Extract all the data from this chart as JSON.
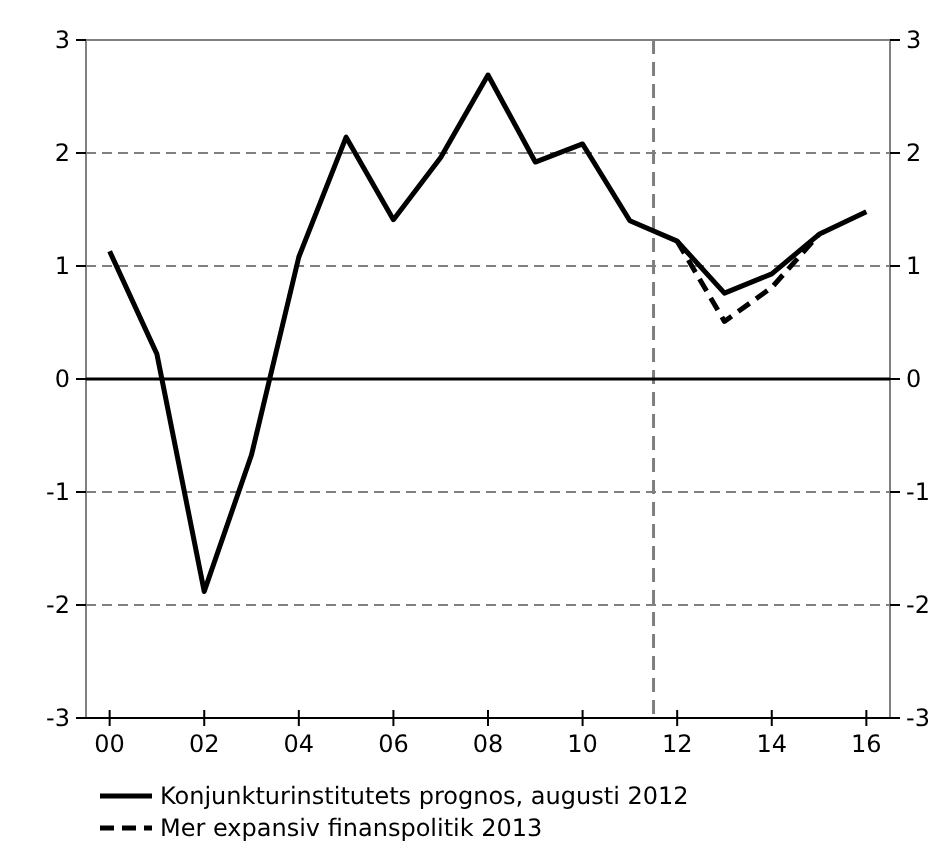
{
  "chart_data": {
    "type": "line",
    "x": [
      2000,
      2001,
      2002,
      2003,
      2004,
      2005,
      2006,
      2007,
      2008,
      2009,
      2010,
      2011,
      2012,
      2013,
      2014,
      2015,
      2016
    ],
    "xlim": [
      1999.5,
      2016.5
    ],
    "xticks": [
      {
        "value": 2000,
        "label": "00"
      },
      {
        "value": 2002,
        "label": "02"
      },
      {
        "value": 2004,
        "label": "04"
      },
      {
        "value": 2006,
        "label": "06"
      },
      {
        "value": 2008,
        "label": "08"
      },
      {
        "value": 2010,
        "label": "10"
      },
      {
        "value": 2012,
        "label": "12"
      },
      {
        "value": 2014,
        "label": "14"
      },
      {
        "value": 2016,
        "label": "16"
      }
    ],
    "ylim": [
      -3,
      3
    ],
    "yticks": [
      -3,
      -2,
      -1,
      0,
      1,
      2,
      3
    ],
    "y2lim": [
      -3,
      3
    ],
    "y2ticks": [
      -3,
      -2,
      -1,
      0,
      1,
      2,
      3
    ],
    "grid": "y",
    "legend": "bottom",
    "ref_lines": [
      {
        "axis": "x",
        "value": 2011.5,
        "color": "#7f7f7f",
        "line_style": "dashed"
      },
      {
        "axis": "y",
        "value": 0,
        "color": "#000000",
        "line_style": "solid"
      }
    ],
    "series": [
      {
        "name": "Konjunkturinstitutets prognos, augusti 2012",
        "color": "#000000",
        "line_style": "solid",
        "values": [
          1.13,
          0.22,
          -1.88,
          -0.67,
          1.08,
          2.14,
          1.41,
          1.96,
          2.69,
          1.92,
          2.08,
          1.4,
          1.22,
          0.76,
          0.93,
          1.28,
          1.48
        ]
      },
      {
        "name": "Mer expansiv finanspolitik 2013",
        "color": "#000000",
        "line_style": "dashed",
        "values": [
          null,
          null,
          null,
          null,
          null,
          null,
          null,
          null,
          null,
          null,
          null,
          null,
          1.22,
          0.51,
          0.81,
          1.28,
          null
        ]
      }
    ]
  }
}
